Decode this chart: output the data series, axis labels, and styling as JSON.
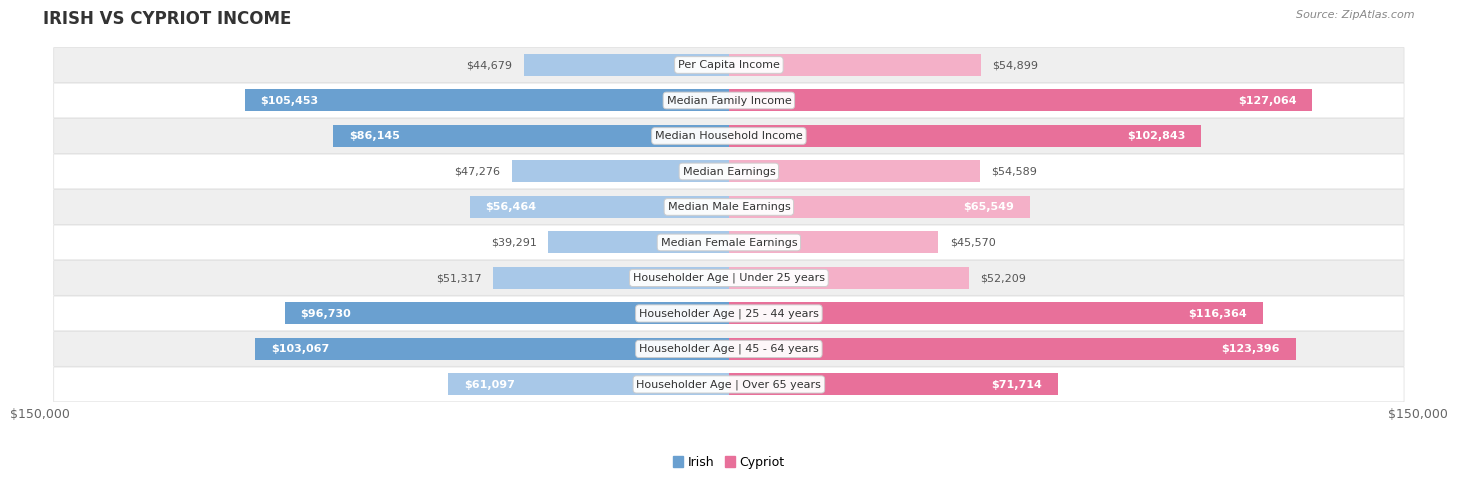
{
  "title": "IRISH VS CYPRIOT INCOME",
  "source": "Source: ZipAtlas.com",
  "categories": [
    "Per Capita Income",
    "Median Family Income",
    "Median Household Income",
    "Median Earnings",
    "Median Male Earnings",
    "Median Female Earnings",
    "Householder Age | Under 25 years",
    "Householder Age | 25 - 44 years",
    "Householder Age | 45 - 64 years",
    "Householder Age | Over 65 years"
  ],
  "irish_values": [
    44679,
    105453,
    86145,
    47276,
    56464,
    39291,
    51317,
    96730,
    103067,
    61097
  ],
  "cypriot_values": [
    54899,
    127064,
    102843,
    54589,
    65549,
    45570,
    52209,
    116364,
    123396,
    71714
  ],
  "irish_labels": [
    "$44,679",
    "$105,453",
    "$86,145",
    "$47,276",
    "$56,464",
    "$39,291",
    "$51,317",
    "$96,730",
    "$103,067",
    "$61,097"
  ],
  "cypriot_labels": [
    "$54,899",
    "$127,064",
    "$102,843",
    "$54,589",
    "$65,549",
    "$45,570",
    "$52,209",
    "$116,364",
    "$123,396",
    "$71,714"
  ],
  "max_value": 150000,
  "irish_color_light": "#a8c8e8",
  "irish_color_dark": "#6aa0d0",
  "cypriot_color_light": "#f4b0c8",
  "cypriot_color_dark": "#e8709a",
  "bar_height": 0.62,
  "bg_row_light": "#efefef",
  "bg_row_dark": "#ffffff",
  "inside_label_threshold": 55000,
  "outside_label_color": "#555555",
  "inside_label_color": "#ffffff",
  "title_fontsize": 12,
  "label_fontsize": 8,
  "axis_fontsize": 9
}
